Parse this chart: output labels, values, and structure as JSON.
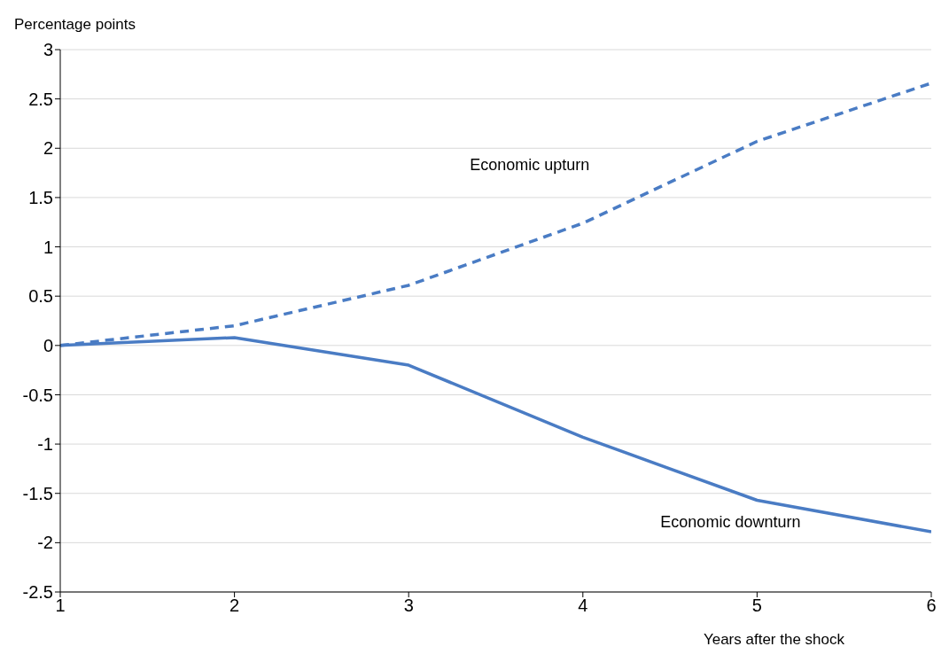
{
  "chart_data": {
    "type": "line",
    "ylabel": "Percentage points",
    "xlabel": "Years after the shock",
    "x": [
      1,
      2,
      3,
      4,
      5,
      6
    ],
    "series": [
      {
        "name": "Economic upturn",
        "color": "#4a7cc4",
        "line_style": "dashed",
        "values": [
          0,
          0.2,
          0.61,
          1.24,
          2.07,
          2.66
        ]
      },
      {
        "name": "Economic downturn",
        "color": "#4a7cc4",
        "line_style": "solid",
        "values": [
          0,
          0.08,
          -0.2,
          -0.93,
          -1.57,
          -1.89
        ]
      }
    ],
    "xlim": [
      1,
      6
    ],
    "xticks": [
      1,
      2,
      3,
      4,
      5,
      6
    ],
    "ylim": [
      -2.5,
      3
    ],
    "yticks": [
      -2.5,
      -2,
      -1.5,
      -1,
      -0.5,
      0,
      0.5,
      1,
      1.5,
      2,
      2.5,
      3
    ],
    "grid": "y",
    "marker": "none",
    "legend": false
  }
}
